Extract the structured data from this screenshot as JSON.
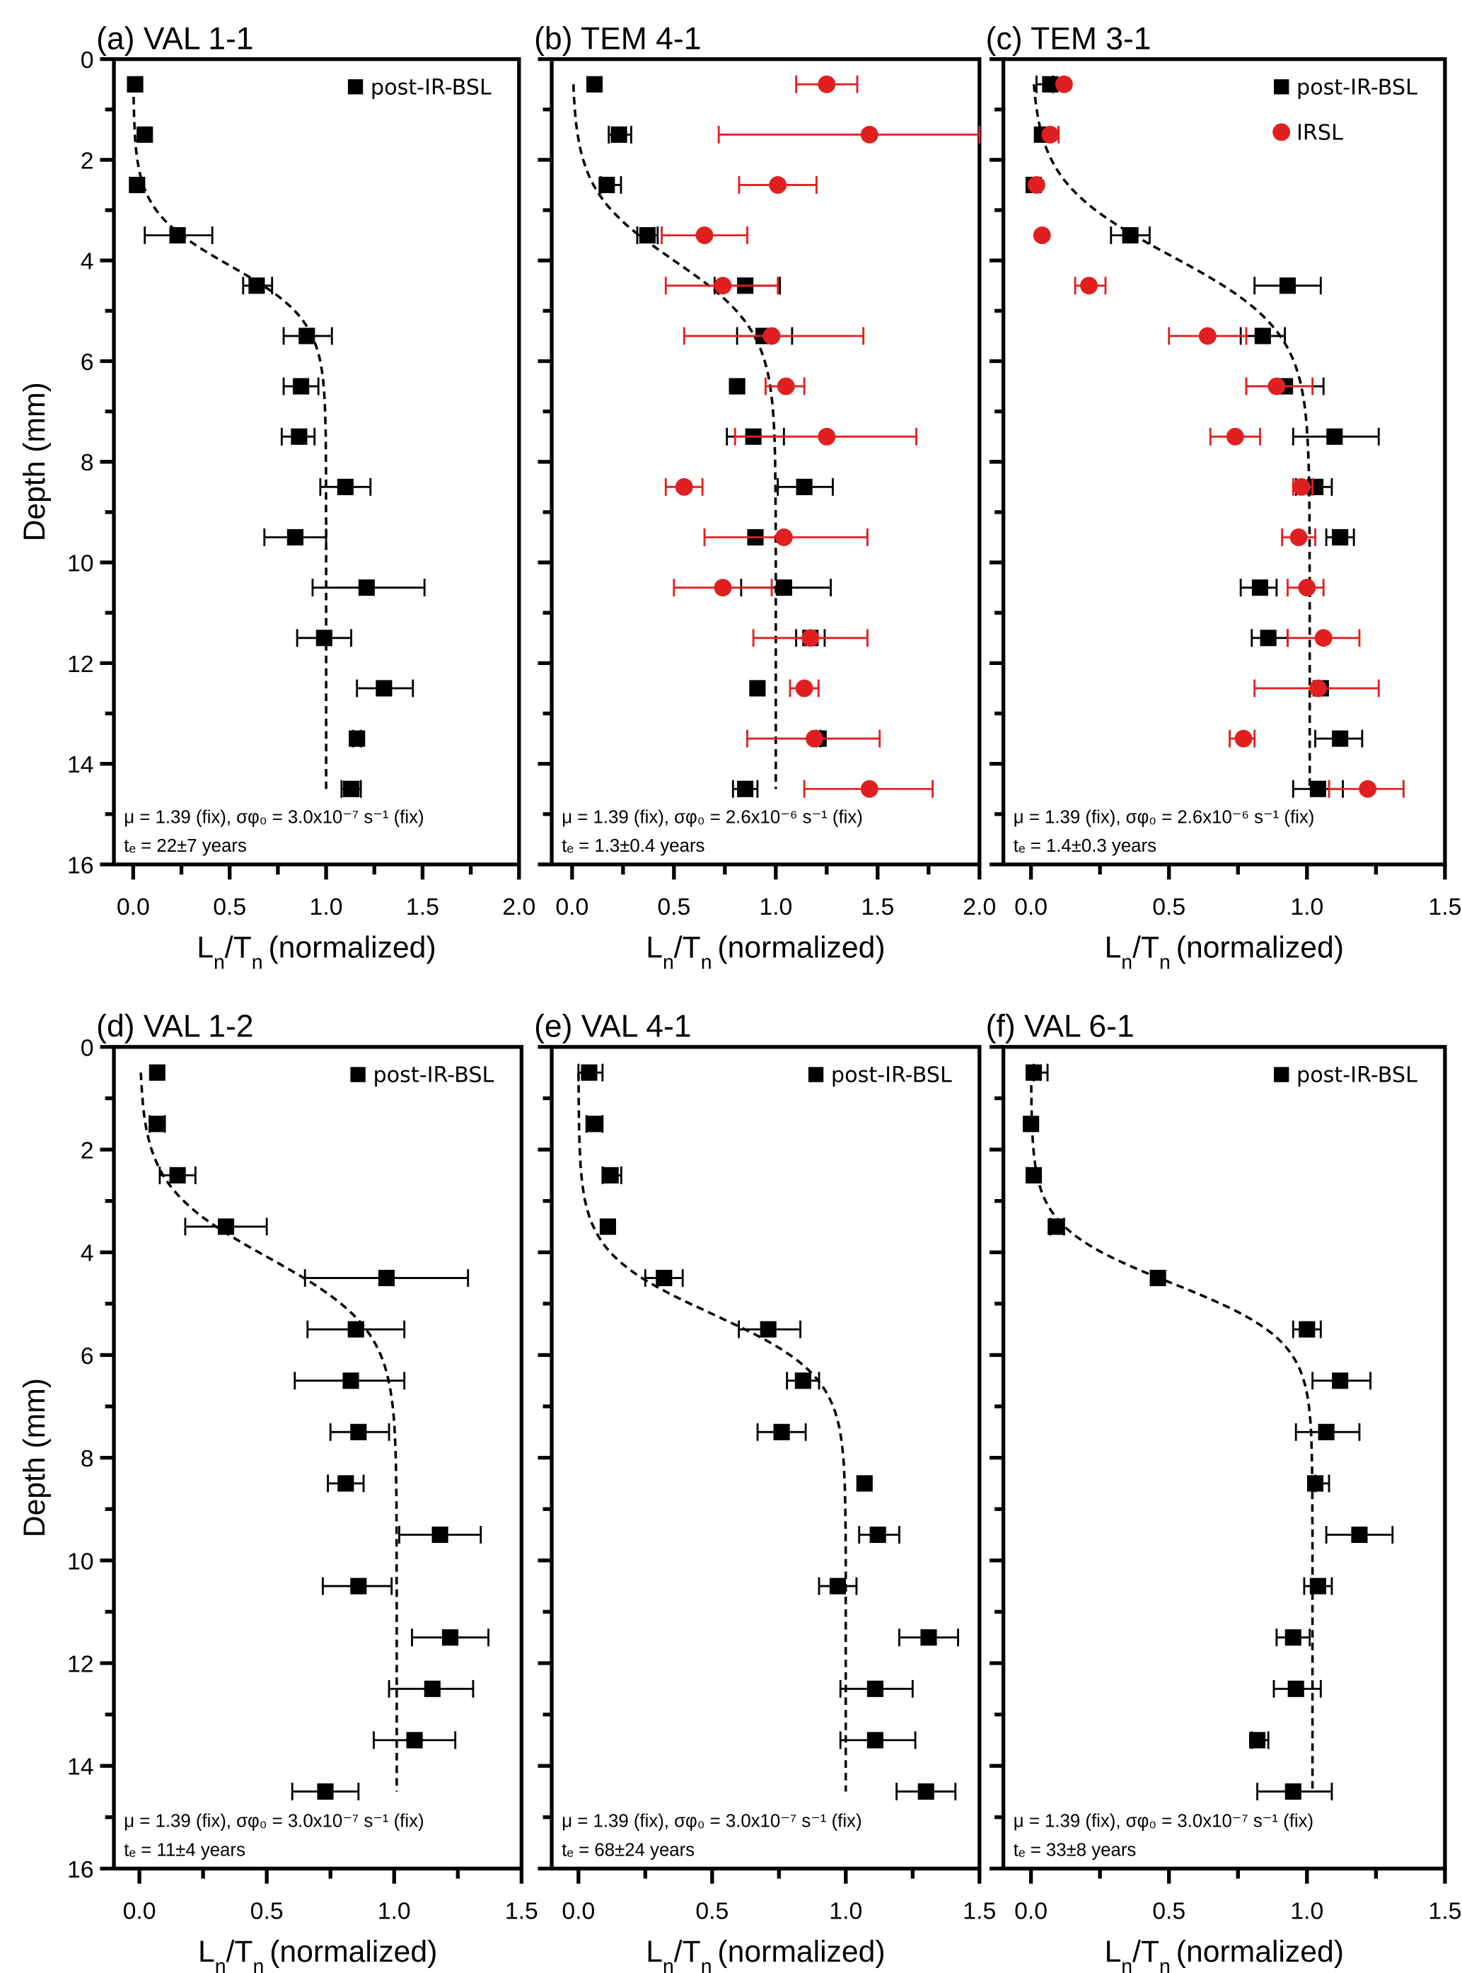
{
  "figure": {
    "y_axis_title": "Depth (mm)",
    "x_axis_title_main": "L",
    "x_axis_title_sub1": "n",
    "x_axis_title_mid": "/T",
    "x_axis_title_sub2": "n",
    "x_axis_title_rest": "(normalized)",
    "colors": {
      "post_ir_bsl": "#000000",
      "irsl": "#e02020",
      "fit": "#000000"
    }
  },
  "chart_data": [
    {
      "id": "a",
      "type": "scatter",
      "title": "(a) VAL 1-1",
      "xlabel": "Ln/Tn (normalized)",
      "ylabel": "Depth (mm)",
      "xlim": [
        -0.1,
        2.0
      ],
      "ylim": [
        16,
        0
      ],
      "xticks": [
        "0.0",
        "0.5",
        "1.0",
        "1.5",
        "2.0"
      ],
      "xtick_values": [
        0,
        0.5,
        1.0,
        1.5,
        2.0
      ],
      "yticks": [
        "0",
        "2",
        "4",
        "6",
        "8",
        "10",
        "12",
        "14",
        "16"
      ],
      "legend": [
        "post-IR-BSL"
      ],
      "legend_position": "top-right",
      "annotation_line1": "μ = 1.39 (fix), σφ₀ = 3.0x10⁻⁷ s⁻¹ (fix)",
      "annotation_line2": "tₑ = 22±7 years",
      "fit": {
        "type": "sigmoid",
        "plateau": 1.0,
        "midpoint_depth": 4.1,
        "width": 0.55,
        "depth_range": [
          0.5,
          14.5
        ]
      },
      "series": [
        {
          "name": "post-IR-BSL",
          "marker": "square",
          "depth": [
            0.5,
            1.5,
            2.5,
            3.5,
            4.5,
            5.5,
            6.5,
            7.5,
            8.5,
            9.5,
            10.5,
            11.5,
            12.5,
            13.5,
            14.5
          ],
          "value": [
            0.01,
            0.06,
            0.02,
            0.23,
            0.64,
            0.9,
            0.87,
            0.86,
            1.1,
            0.84,
            1.21,
            0.99,
            1.3,
            1.16,
            1.13
          ],
          "err_low": [
            0.01,
            0.06,
            0.02,
            0.06,
            0.57,
            0.78,
            0.78,
            0.77,
            0.97,
            0.68,
            0.93,
            0.85,
            1.16,
            1.14,
            1.08
          ],
          "err_high": [
            0.01,
            0.06,
            0.02,
            0.41,
            0.72,
            1.03,
            0.96,
            0.94,
            1.23,
            1.0,
            1.51,
            1.13,
            1.45,
            1.18,
            1.18
          ]
        }
      ]
    },
    {
      "id": "b",
      "type": "scatter",
      "title": "(b) TEM 4-1",
      "xlabel": "Ln/Tn (normalized)",
      "ylabel": "Depth (mm)",
      "xlim": [
        -0.1,
        2.0
      ],
      "ylim": [
        16,
        0
      ],
      "xticks": [
        "0.0",
        "0.5",
        "1.0",
        "1.5",
        "2.0"
      ],
      "xtick_values": [
        0,
        0.5,
        1.0,
        1.5,
        2.0
      ],
      "yticks": [],
      "legend": [],
      "annotation_line1": "μ = 1.39 (fix), σφ₀ = 2.6x10⁻⁶ s⁻¹ (fix)",
      "annotation_line2": "tₑ = 1.3±0.4 years",
      "fit": {
        "type": "sigmoid",
        "plateau": 1.0,
        "midpoint_depth": 4.0,
        "width": 0.7,
        "depth_range": [
          0.5,
          14.5
        ]
      },
      "series": [
        {
          "name": "post-IR-BSL",
          "marker": "square",
          "depth": [
            0.5,
            1.5,
            2.5,
            3.5,
            4.5,
            5.5,
            6.5,
            7.5,
            8.5,
            9.5,
            10.5,
            11.5,
            12.5,
            13.5,
            14.5
          ],
          "value": [
            0.11,
            0.23,
            0.17,
            0.37,
            0.85,
            0.94,
            0.81,
            0.89,
            1.14,
            0.9,
            1.04,
            1.17,
            0.91,
            1.21,
            0.85
          ],
          "err_low": [
            0.11,
            0.18,
            0.14,
            0.32,
            0.7,
            0.81,
            0.81,
            0.76,
            1.01,
            0.9,
            0.83,
            1.1,
            0.91,
            1.2,
            0.79
          ],
          "err_high": [
            0.11,
            0.29,
            0.24,
            0.42,
            1.02,
            1.08,
            0.81,
            1.04,
            1.28,
            0.9,
            1.27,
            1.24,
            0.91,
            1.22,
            0.91
          ]
        },
        {
          "name": "IRSL",
          "marker": "circle",
          "depth": [
            0.5,
            1.5,
            2.5,
            3.5,
            4.5,
            5.5,
            6.5,
            7.5,
            8.5,
            9.5,
            10.5,
            11.5,
            12.5,
            13.5,
            14.5
          ],
          "value": [
            1.25,
            1.46,
            1.01,
            0.65,
            0.74,
            0.98,
            1.05,
            1.25,
            0.55,
            1.04,
            0.74,
            1.17,
            1.14,
            1.19,
            1.46
          ],
          "err_low": [
            1.1,
            0.72,
            0.82,
            0.44,
            0.46,
            0.55,
            0.95,
            0.8,
            0.46,
            0.65,
            0.5,
            0.89,
            1.07,
            0.86,
            1.14
          ],
          "err_high": [
            1.4,
            2.0,
            1.2,
            0.86,
            1.01,
            1.43,
            1.14,
            1.69,
            0.64,
            1.45,
            0.98,
            1.45,
            1.21,
            1.51,
            1.77
          ]
        }
      ]
    },
    {
      "id": "c",
      "type": "scatter",
      "title": "(c) TEM 3-1",
      "xlabel": "Ln/Tn (normalized)",
      "ylabel": "Depth (mm)",
      "xlim": [
        -0.1,
        1.5
      ],
      "ylim": [
        16,
        0
      ],
      "xticks": [
        "0.0",
        "0.5",
        "1.0",
        "1.5"
      ],
      "xtick_values": [
        0,
        0.5,
        1.0,
        1.5
      ],
      "yticks": [],
      "legend": [
        "post-IR-BSL",
        "IRSL"
      ],
      "legend_position": "top-right",
      "annotation_line1": "μ = 1.39 (fix), σφ₀ = 2.6x10⁻⁶ s⁻¹ (fix)",
      "annotation_line2": "tₑ = 1.4±0.3 years",
      "fit": {
        "type": "sigmoid",
        "plateau": 1.01,
        "midpoint_depth": 3.9,
        "width": 0.75,
        "depth_range": [
          0.5,
          14.5
        ]
      },
      "series": [
        {
          "name": "post-IR-BSL",
          "marker": "square",
          "depth": [
            0.5,
            1.5,
            2.5,
            3.5,
            4.5,
            5.5,
            6.5,
            7.5,
            8.5,
            9.5,
            10.5,
            11.5,
            12.5,
            13.5,
            14.5
          ],
          "value": [
            0.07,
            0.04,
            0.01,
            0.36,
            0.93,
            0.84,
            0.92,
            1.1,
            1.03,
            1.12,
            0.83,
            0.86,
            1.05,
            1.12,
            1.04
          ],
          "err_low": [
            0.02,
            0.04,
            0.01,
            0.29,
            0.81,
            0.76,
            0.78,
            0.95,
            0.96,
            1.07,
            0.76,
            0.8,
            1.05,
            1.03,
            0.95
          ],
          "err_high": [
            0.08,
            0.04,
            0.01,
            0.43,
            1.05,
            0.92,
            1.06,
            1.26,
            1.09,
            1.17,
            0.89,
            0.93,
            1.05,
            1.2,
            1.13
          ]
        },
        {
          "name": "IRSL",
          "marker": "circle",
          "depth": [
            0.5,
            1.5,
            2.5,
            3.5,
            4.5,
            5.5,
            6.5,
            7.5,
            8.5,
            9.5,
            10.5,
            11.5,
            12.5,
            13.5,
            14.5
          ],
          "value": [
            0.12,
            0.07,
            0.02,
            0.04,
            0.21,
            0.64,
            0.89,
            0.74,
            0.98,
            0.97,
            1.0,
            1.06,
            1.04,
            0.77,
            1.22
          ],
          "err_low": [
            0.12,
            0.07,
            0.02,
            0.04,
            0.16,
            0.5,
            0.78,
            0.65,
            0.95,
            0.91,
            0.93,
            0.93,
            0.81,
            0.72,
            1.08
          ],
          "err_high": [
            0.12,
            0.1,
            0.02,
            0.04,
            0.27,
            0.78,
            1.02,
            0.83,
            1.02,
            1.03,
            1.06,
            1.19,
            1.26,
            0.81,
            1.35
          ]
        }
      ]
    },
    {
      "id": "d",
      "type": "scatter",
      "title": "(d) VAL 1-2",
      "xlabel": "Ln/Tn (normalized)",
      "ylabel": "Depth (mm)",
      "xlim": [
        -0.1,
        1.5
      ],
      "ylim": [
        16,
        0
      ],
      "xticks": [
        "0.0",
        "0.5",
        "1.0",
        "1.5"
      ],
      "xtick_values": [
        0,
        0.5,
        1.0,
        1.5
      ],
      "yticks": [
        "0",
        "2",
        "4",
        "6",
        "8",
        "10",
        "12",
        "14",
        "16"
      ],
      "legend": [
        "post-IR-BSL"
      ],
      "legend_position": "top-right",
      "annotation_line1": "μ = 1.39 (fix), σφ₀ = 3.0x10⁻⁷ s⁻¹ (fix)",
      "annotation_line2": "tₑ = 11±4 years",
      "fit": {
        "type": "sigmoid",
        "plateau": 1.01,
        "midpoint_depth": 4.1,
        "width": 0.7,
        "depth_range": [
          0.5,
          14.5
        ]
      },
      "series": [
        {
          "name": "post-IR-BSL",
          "marker": "square",
          "depth": [
            0.5,
            1.5,
            2.5,
            3.5,
            4.5,
            5.5,
            6.5,
            7.5,
            8.5,
            9.5,
            10.5,
            11.5,
            12.5,
            13.5,
            14.5
          ],
          "value": [
            0.07,
            0.07,
            0.15,
            0.34,
            0.97,
            0.85,
            0.83,
            0.86,
            0.81,
            1.18,
            0.86,
            1.22,
            1.15,
            1.08,
            0.73
          ],
          "err_low": [
            0.07,
            0.04,
            0.08,
            0.18,
            0.65,
            0.66,
            0.61,
            0.75,
            0.74,
            1.02,
            0.72,
            1.07,
            0.98,
            0.92,
            0.6
          ],
          "err_high": [
            0.07,
            0.1,
            0.22,
            0.5,
            1.29,
            1.04,
            1.04,
            0.98,
            0.88,
            1.34,
            0.99,
            1.37,
            1.31,
            1.24,
            0.86
          ]
        }
      ]
    },
    {
      "id": "e",
      "type": "scatter",
      "title": "(e) VAL 4-1",
      "xlabel": "Ln/Tn (normalized)",
      "ylabel": "Depth (mm)",
      "xlim": [
        -0.1,
        1.5
      ],
      "ylim": [
        16,
        0
      ],
      "xticks": [
        "0.0",
        "0.5",
        "1.0",
        "1.5"
      ],
      "xtick_values": [
        0,
        0.5,
        1.0,
        1.5
      ],
      "yticks": [],
      "legend": [
        "post-IR-BSL"
      ],
      "legend_position": "top-right",
      "annotation_line1": "μ = 1.39 (fix), σφ₀ = 3.0x10⁻⁷ s⁻¹ (fix)",
      "annotation_line2": "tₑ = 68±24 years",
      "fit": {
        "type": "sigmoid",
        "plateau": 1.0,
        "midpoint_depth": 5.2,
        "width": 0.6,
        "depth_range": [
          0.5,
          14.5
        ]
      },
      "series": [
        {
          "name": "post-IR-BSL",
          "marker": "square",
          "depth": [
            0.5,
            1.5,
            2.5,
            3.5,
            4.5,
            5.5,
            6.5,
            7.5,
            8.5,
            9.5,
            10.5,
            11.5,
            12.5,
            13.5,
            14.5
          ],
          "value": [
            0.04,
            0.06,
            0.12,
            0.11,
            0.32,
            0.71,
            0.84,
            0.76,
            1.07,
            1.12,
            0.97,
            1.31,
            1.11,
            1.11,
            1.3
          ],
          "err_low": [
            0.0,
            0.03,
            0.09,
            0.11,
            0.25,
            0.6,
            0.78,
            0.67,
            1.07,
            1.05,
            0.9,
            1.2,
            0.98,
            0.98,
            1.19
          ],
          "err_high": [
            0.09,
            0.09,
            0.16,
            0.11,
            0.39,
            0.83,
            0.9,
            0.85,
            1.07,
            1.2,
            1.04,
            1.42,
            1.25,
            1.26,
            1.41
          ]
        }
      ]
    },
    {
      "id": "f",
      "type": "scatter",
      "title": "(f) VAL 6-1",
      "xlabel": "Ln/Tn (normalized)",
      "ylabel": "Depth (mm)",
      "xlim": [
        -0.1,
        1.5
      ],
      "ylim": [
        16,
        0
      ],
      "xticks": [
        "0.0",
        "0.5",
        "1.0",
        "1.5"
      ],
      "xtick_values": [
        0,
        0.5,
        1.0,
        1.5
      ],
      "yticks": [],
      "legend": [
        "post-IR-BSL"
      ],
      "legend_position": "top-right",
      "annotation_line1": "μ = 1.39 (fix), σφ₀ = 3.0x10⁻⁷ s⁻¹ (fix)",
      "annotation_line2": "tₑ = 33±8 years",
      "fit": {
        "type": "sigmoid",
        "plateau": 1.02,
        "midpoint_depth": 4.6,
        "width": 0.55,
        "depth_range": [
          0.5,
          14.5
        ]
      },
      "series": [
        {
          "name": "post-IR-BSL",
          "marker": "square",
          "depth": [
            0.5,
            1.5,
            2.5,
            3.5,
            4.5,
            5.5,
            6.5,
            7.5,
            8.5,
            9.5,
            10.5,
            11.5,
            12.5,
            13.5,
            14.5
          ],
          "value": [
            0.01,
            0.0,
            0.01,
            0.09,
            0.46,
            1.0,
            1.12,
            1.07,
            1.03,
            1.19,
            1.04,
            0.95,
            0.96,
            0.82,
            0.95
          ],
          "err_low": [
            0.01,
            0.0,
            0.01,
            0.07,
            0.46,
            0.95,
            1.02,
            0.96,
            1.03,
            1.07,
            0.99,
            0.89,
            0.88,
            0.8,
            0.82
          ],
          "err_high": [
            0.06,
            0.0,
            0.01,
            0.12,
            0.46,
            1.05,
            1.23,
            1.19,
            1.08,
            1.31,
            1.09,
            1.01,
            1.05,
            0.86,
            1.09
          ]
        }
      ]
    }
  ]
}
